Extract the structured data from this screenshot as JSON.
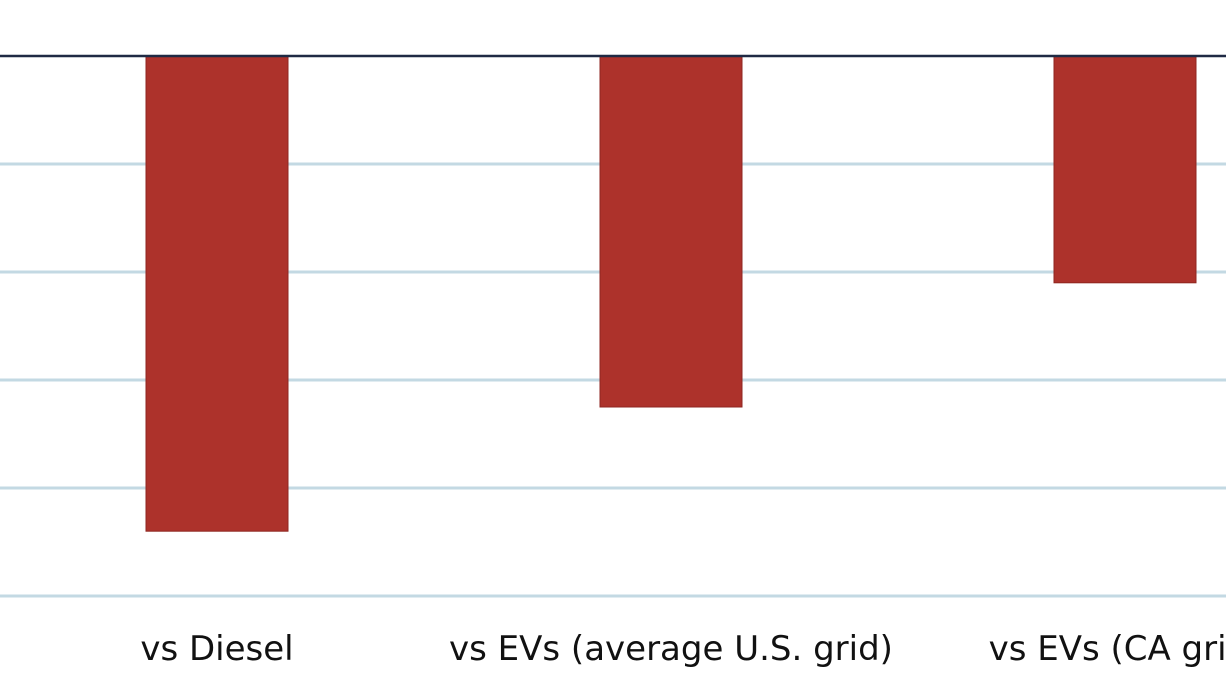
{
  "chart_data": {
    "type": "bar",
    "categories": [
      "vs Diesel",
      "vs EVs (average U.S. grid)",
      "vs EVs (CA grid)"
    ],
    "series": [
      {
        "values": [
          -0.88,
          -0.65,
          -0.42
        ]
      }
    ],
    "ylim": [
      -1.0,
      0.0
    ],
    "grid": true,
    "colors": {
      "bar": "#ad322b",
      "zero_line": "#1f2a44",
      "grid": "#c3d9e3"
    }
  }
}
